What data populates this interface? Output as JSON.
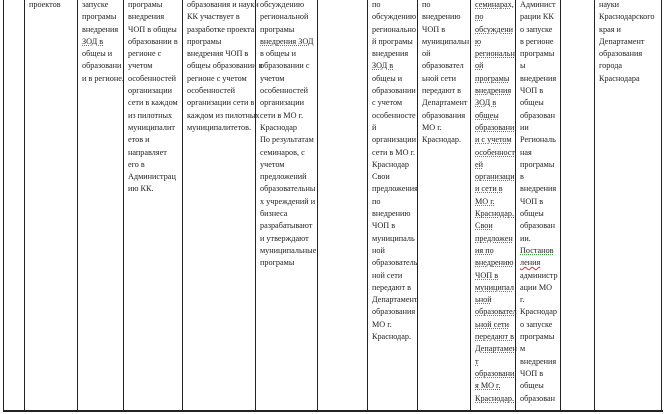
{
  "table": {
    "cells": [
      {
        "lines": []
      },
      {
        "lines": [
          "проектов"
        ]
      },
      {
        "lines": [
          "запуске",
          "програмы",
          "внедрения",
          "ЗОД в",
          "общеы и",
          "образовани",
          "и в регионе."
        ]
      },
      {
        "lines": [
          "програмы",
          "внедрения",
          "ЧОП в общеы",
          "образовании в",
          "регионе с",
          "учетом",
          "особенностей",
          "организации",
          "сети в каждом",
          "из пилотных",
          "муниципалит",
          "етов и",
          "направляет",
          "его в",
          "Администрац",
          "ию КК."
        ]
      },
      {
        "lines": [
          "образования и науки",
          "КК участвует в",
          "разработке проекта",
          "програмы",
          "внедрения ЧОП в",
          "общеы образовании в",
          "регионе с учетом",
          "особенностей",
          "организации сети в",
          "каждом из пилотных",
          "муниципалитетов."
        ]
      },
      {
        "lines": [
          "обсуждению",
          "региональной",
          "програмы",
          "внедрения ЗОД",
          "в общеы и",
          "образовании с",
          "учетом",
          "особенностей",
          "организации",
          "сети в МО г.",
          "Краснодар",
          "По результатам",
          "семинаров, с",
          "учетом",
          "предложений",
          "образовательны",
          "х учреждений и",
          "бизнеса",
          "разрабатывают",
          "и утверждают",
          "муниципальные",
          "програмы"
        ]
      },
      {
        "lines": []
      },
      {
        "lines": [
          "по",
          "обсуждению",
          "регионально",
          "й програмы",
          "внедрения",
          "ЗОД в",
          "общеы и",
          "образовании",
          "с учетом",
          "особенносте",
          "й",
          "организации",
          "сети в МО г.",
          "Краснодар",
          "Свои",
          "предложения",
          "по",
          "внедрению",
          "ЧОП в",
          "муниципаль",
          "ной",
          "образователь",
          "ной сети",
          "передают в",
          "Департамент",
          "образования",
          "МО г.",
          "Краснодар."
        ]
      },
      {
        "lines": [
          "по",
          "внедрению",
          "ЧОП в",
          "муниципальн",
          "ой",
          "образовател",
          "ьной сети",
          "передают в",
          "Департамент",
          "образования",
          "МО г.",
          "Краснодар."
        ]
      },
      {
        "lines": [
          "семинарах,",
          "по",
          "обсуждени",
          "ю",
          "региональн",
          "ой",
          "програмы",
          "внедрения",
          "ЗОД в",
          "общеы",
          "образовани",
          "и с учетом",
          "особенност",
          "ей",
          "организаци",
          "и сети в",
          "МО г.",
          "Краснодар.",
          "Свои",
          "предложен",
          "ия по",
          "внедрению",
          "ЧОП в",
          "муниципал",
          "ьной",
          "образовател",
          "ьной сети",
          "передают в",
          "Департамен",
          "т",
          "образовани",
          "я МО г.",
          "Краснодар."
        ]
      },
      {
        "lines": [
          "Админист",
          "рации КК",
          "о запуске",
          "в регионе",
          "програмы",
          "ы",
          "внедрения",
          "ЧОП в",
          "общеы",
          "образован",
          "ии",
          "Региональ",
          "ная",
          "програмы",
          "в",
          "внедрения",
          "ЧОП в",
          "общеы",
          "образован",
          "ии.",
          "Постанов",
          "ления",
          "администр",
          "ации МО",
          "г.",
          "Краснодар",
          "о запуске",
          "програмы",
          "м",
          "внедрения",
          "ЧОП в",
          "общеы",
          "образован"
        ]
      },
      {
        "lines": []
      },
      {
        "lines": [
          "науки",
          "Краснодарского",
          "края и",
          "Департамент",
          "образования",
          "города",
          "Краснодара"
        ]
      }
    ]
  }
}
